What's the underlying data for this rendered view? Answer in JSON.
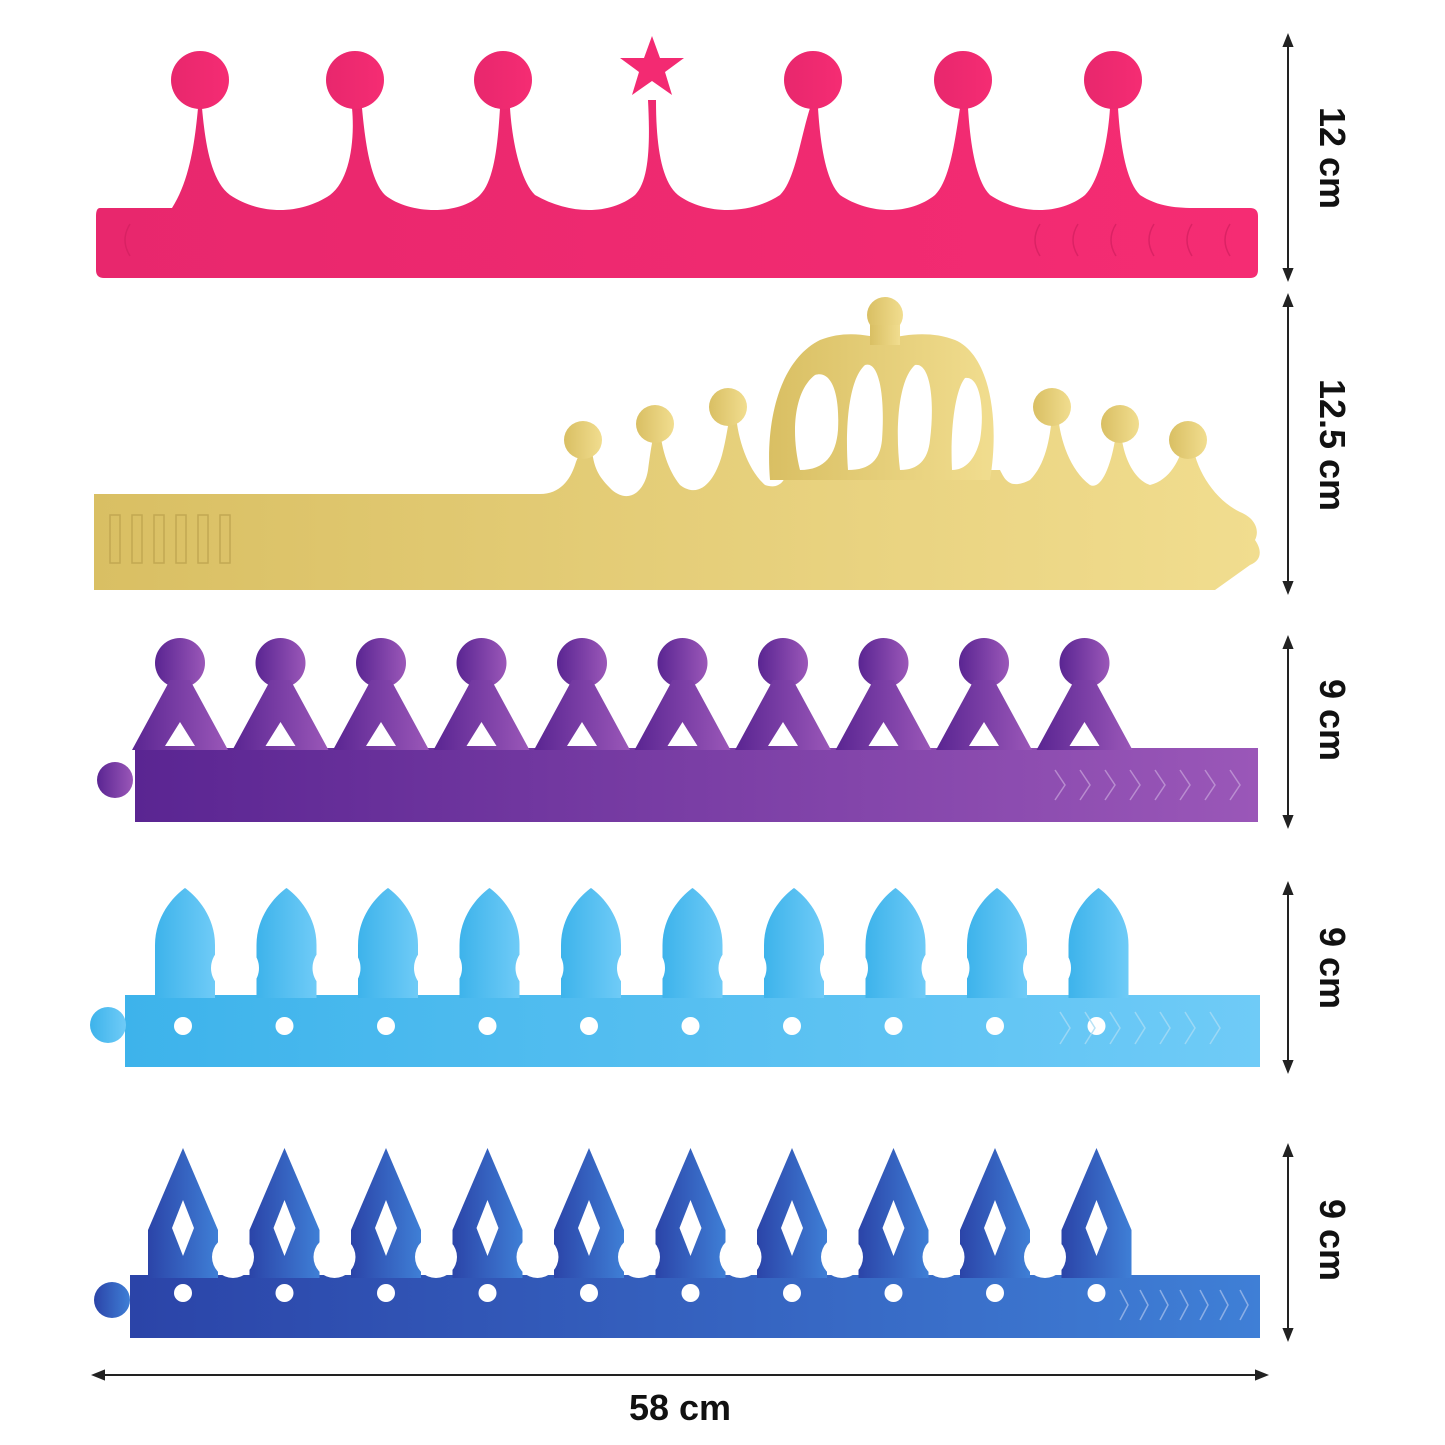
{
  "crowns": [
    {
      "id": "pink",
      "style": "round-tips-star",
      "height_label": "12 cm",
      "color_a": "#e8276d",
      "color_b": "#f52c73"
    },
    {
      "id": "gold",
      "style": "royal-center",
      "height_label": "12.5 cm",
      "color_a": "#d9bf63",
      "color_b": "#f1dd8f"
    },
    {
      "id": "purple",
      "style": "round-tips-triangle",
      "height_label": "9 cm",
      "color_a": "#5a2592",
      "color_b": "#9a57b8"
    },
    {
      "id": "sky",
      "style": "arch-tips-dots",
      "height_label": "9 cm",
      "color_a": "#3db3eb",
      "color_b": "#6fcbf7"
    },
    {
      "id": "blue",
      "style": "spike-tips-diamond",
      "height_label": "9 cm",
      "color_a": "#2b44a8",
      "color_b": "#3f7fd6"
    }
  ],
  "width_label": "58 cm",
  "colors": {
    "dimension_line": "#222222",
    "background": "#ffffff"
  }
}
